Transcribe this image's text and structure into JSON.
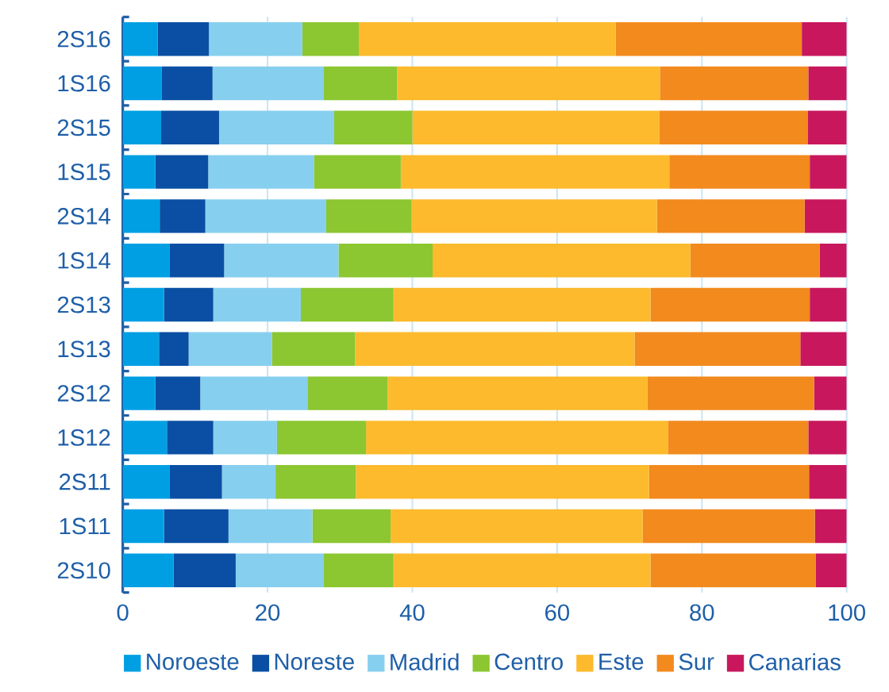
{
  "chart_data": {
    "type": "bar",
    "orientation": "horizontal",
    "stacked": true,
    "categories": [
      "2S16",
      "1S16",
      "2S15",
      "1S15",
      "2S14",
      "1S14",
      "2S13",
      "1S13",
      "2S12",
      "1S12",
      "2S11",
      "1S11",
      "2S10"
    ],
    "series": [
      {
        "name": "Noroeste",
        "color": "#009fe3",
        "values": [
          4.8,
          5.4,
          5.3,
          4.5,
          5.1,
          6.5,
          5.7,
          5.0,
          4.5,
          6.1,
          6.5,
          5.7,
          7.0
        ]
      },
      {
        "name": "Noreste",
        "color": "#0a4fa3",
        "values": [
          7.1,
          7.0,
          8.0,
          7.3,
          6.3,
          7.5,
          6.8,
          4.1,
          6.2,
          6.4,
          7.2,
          8.9,
          8.6
        ]
      },
      {
        "name": "Madrid",
        "color": "#87cfef",
        "values": [
          12.9,
          15.3,
          15.9,
          14.6,
          16.7,
          15.8,
          12.1,
          11.5,
          14.8,
          8.8,
          7.4,
          11.6,
          12.1
        ]
      },
      {
        "name": "Centro",
        "color": "#8cc631",
        "values": [
          7.8,
          10.2,
          10.8,
          12.0,
          11.8,
          13.0,
          12.8,
          11.5,
          11.1,
          12.3,
          11.1,
          10.8,
          9.7
        ]
      },
      {
        "name": "Este",
        "color": "#fcba2c",
        "values": [
          35.5,
          36.3,
          34.1,
          37.1,
          33.9,
          35.6,
          35.5,
          38.6,
          35.9,
          41.7,
          40.5,
          34.8,
          35.5
        ]
      },
      {
        "name": "Sur",
        "color": "#f28a1e",
        "values": [
          25.7,
          20.5,
          20.5,
          19.4,
          20.4,
          17.9,
          22.0,
          22.9,
          23.0,
          19.4,
          22.1,
          23.8,
          22.8
        ]
      },
      {
        "name": "Canarias",
        "color": "#c8175d",
        "values": [
          6.2,
          5.3,
          5.4,
          5.1,
          5.8,
          3.7,
          5.1,
          6.4,
          4.5,
          5.3,
          5.2,
          4.4,
          4.3
        ]
      }
    ],
    "xlim": [
      0,
      100
    ],
    "xticks": [
      0,
      20,
      40,
      60,
      80,
      100
    ],
    "grid": "x",
    "legend": "bottom"
  }
}
